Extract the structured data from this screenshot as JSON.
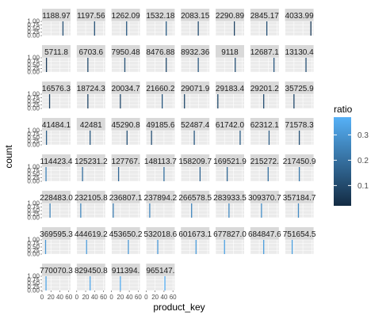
{
  "chart_data": {
    "type": "bar",
    "facet_by": "panel",
    "xlabel": "product_key",
    "ylabel": "count",
    "x_ticks": [
      "0",
      "20",
      "40",
      "60"
    ],
    "y_ticks": [
      "0.00",
      "0.25",
      "0.50",
      "0.75",
      "1.00"
    ],
    "xlim": [
      0,
      64
    ],
    "ylim": [
      0,
      1
    ],
    "legend": {
      "title": "ratio",
      "ticks": [
        "0.1",
        "0.2",
        "0.3"
      ],
      "range": [
        0.02,
        0.37
      ],
      "low_color": "#132B43",
      "high_color": "#56B1F7",
      "placement": "right"
    },
    "panels": [
      {
        "label": "1188.97",
        "x": 47,
        "count": 1,
        "ratio": 0.12
      },
      {
        "label": "1197.56",
        "x": 40,
        "count": 1,
        "ratio": 0.12
      },
      {
        "label": "1262.09",
        "x": 34,
        "count": 1,
        "ratio": 0.14
      },
      {
        "label": "1532.18",
        "x": 45,
        "count": 1,
        "ratio": 0.15
      },
      {
        "label": "2083.15",
        "x": 39,
        "count": 1,
        "ratio": 0.1
      },
      {
        "label": "2290.89",
        "x": 42,
        "count": 1,
        "ratio": 0.08
      },
      {
        "label": "2845.17",
        "x": 37,
        "count": 1,
        "ratio": 0.12
      },
      {
        "label": "4033.99",
        "x": 58,
        "count": 1,
        "ratio": 0.06
      },
      {
        "label": "5711.8",
        "x": 10,
        "count": 1,
        "ratio": 0.06
      },
      {
        "label": "6703.6",
        "x": 25,
        "count": 1,
        "ratio": 0.1
      },
      {
        "label": "7950.48",
        "x": 30,
        "count": 1,
        "ratio": 0.12
      },
      {
        "label": "8476.88",
        "x": 45,
        "count": 1,
        "ratio": 0.1
      },
      {
        "label": "8932.36",
        "x": 39,
        "count": 1,
        "ratio": 0.13
      },
      {
        "label": "9118",
        "x": 44,
        "count": 1,
        "ratio": 0.12
      },
      {
        "label": "12687.1",
        "x": 53,
        "count": 1,
        "ratio": 0.14
      },
      {
        "label": "13130.4",
        "x": 47,
        "count": 1,
        "ratio": 0.12
      },
      {
        "label": "16576.3",
        "x": 17,
        "count": 1,
        "ratio": 0.08
      },
      {
        "label": "18724.3",
        "x": 25,
        "count": 1,
        "ratio": 0.09
      },
      {
        "label": "20034.7",
        "x": 20,
        "count": 1,
        "ratio": 0.1
      },
      {
        "label": "21660.2",
        "x": 36,
        "count": 1,
        "ratio": 0.14
      },
      {
        "label": "29071.9",
        "x": 8,
        "count": 1,
        "ratio": 0.1
      },
      {
        "label": "29183.4",
        "x": 5,
        "count": 1,
        "ratio": 0.1
      },
      {
        "label": "29201.2",
        "x": 30,
        "count": 1,
        "ratio": 0.11
      },
      {
        "label": "35725.9",
        "x": 20,
        "count": 1,
        "ratio": 0.1
      },
      {
        "label": "41484.1",
        "x": 10,
        "count": 1,
        "ratio": 0.15
      },
      {
        "label": "42481",
        "x": 30,
        "count": 1,
        "ratio": 0.14
      },
      {
        "label": "45290.8",
        "x": 35,
        "count": 1,
        "ratio": 0.12
      },
      {
        "label": "49185.6",
        "x": 12,
        "count": 1,
        "ratio": 0.12
      },
      {
        "label": "52487.4",
        "x": 30,
        "count": 1,
        "ratio": 0.14
      },
      {
        "label": "61742.0",
        "x": 55,
        "count": 1,
        "ratio": 0.15
      },
      {
        "label": "62312.1",
        "x": 42,
        "count": 1,
        "ratio": 0.14
      },
      {
        "label": "71578.3",
        "x": 32,
        "count": 1,
        "ratio": 0.12
      },
      {
        "label": "114423.4",
        "x": 9,
        "count": 1,
        "ratio": 0.25
      },
      {
        "label": "125231.2",
        "x": 13,
        "count": 1,
        "ratio": 0.2
      },
      {
        "label": "127767.",
        "x": 16,
        "count": 1,
        "ratio": 0.18
      },
      {
        "label": "148113.7",
        "x": 40,
        "count": 1,
        "ratio": 0.2
      },
      {
        "label": "158209.7",
        "x": 43,
        "count": 1,
        "ratio": 0.17
      },
      {
        "label": "169521.9",
        "x": 26,
        "count": 1,
        "ratio": 0.18
      },
      {
        "label": "215272.",
        "x": 40,
        "count": 1,
        "ratio": 0.2
      },
      {
        "label": "217450.9",
        "x": 32,
        "count": 1,
        "ratio": 0.22
      },
      {
        "label": "228483.0",
        "x": 18,
        "count": 1,
        "ratio": 0.25
      },
      {
        "label": "232105.8",
        "x": 9,
        "count": 1,
        "ratio": 0.26
      },
      {
        "label": "236807.1",
        "x": 4,
        "count": 1,
        "ratio": 0.24
      },
      {
        "label": "237894.2",
        "x": 8,
        "count": 1,
        "ratio": 0.26
      },
      {
        "label": "266578.5",
        "x": 24,
        "count": 1,
        "ratio": 0.26
      },
      {
        "label": "283933.5",
        "x": 30,
        "count": 1,
        "ratio": 0.27
      },
      {
        "label": "309370.7",
        "x": 25,
        "count": 1,
        "ratio": 0.28
      },
      {
        "label": "357184.7",
        "x": 30,
        "count": 1,
        "ratio": 0.27
      },
      {
        "label": "369595.3",
        "x": 8,
        "count": 1,
        "ratio": 0.3
      },
      {
        "label": "444619.2",
        "x": 22,
        "count": 1,
        "ratio": 0.31
      },
      {
        "label": "453650.2",
        "x": 38,
        "count": 1,
        "ratio": 0.3
      },
      {
        "label": "532018.6",
        "x": 26,
        "count": 1,
        "ratio": 0.31
      },
      {
        "label": "601673.1",
        "x": 34,
        "count": 1,
        "ratio": 0.32
      },
      {
        "label": "677827.0",
        "x": 20,
        "count": 1,
        "ratio": 0.33
      },
      {
        "label": "684847.6",
        "x": 30,
        "count": 1,
        "ratio": 0.32
      },
      {
        "label": "751654.5",
        "x": 16,
        "count": 1,
        "ratio": 0.33
      },
      {
        "label": "770070.3",
        "x": 9,
        "count": 1,
        "ratio": 0.34
      },
      {
        "label": "829450.8",
        "x": 30,
        "count": 1,
        "ratio": 0.35
      },
      {
        "label": "911394.",
        "x": 20,
        "count": 1,
        "ratio": 0.36
      },
      {
        "label": "965147.",
        "x": 42,
        "count": 1,
        "ratio": 0.36
      }
    ]
  }
}
